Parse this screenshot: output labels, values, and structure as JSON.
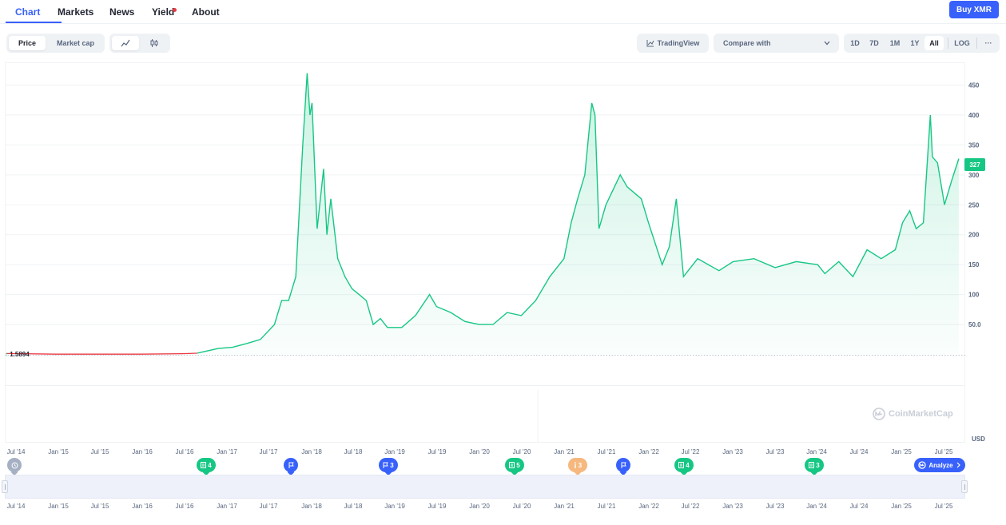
{
  "nav": {
    "tabs": [
      {
        "label": "Chart",
        "active": true
      },
      {
        "label": "Markets"
      },
      {
        "label": "News"
      },
      {
        "label": "Yield"
      },
      {
        "label": "About"
      }
    ],
    "buy_label": "Buy XMR"
  },
  "toolbar": {
    "metric": [
      "Price",
      "Market cap"
    ],
    "active_metric": "Price",
    "chart_style_icons": [
      "line-chart-icon",
      "candlestick-icon"
    ],
    "tradingview_label": "TradingView",
    "compare_placeholder": "Compare with",
    "ranges": [
      "1D",
      "7D",
      "1M",
      "1Y",
      "All"
    ],
    "active_range": "All",
    "log_label": "LOG",
    "more_label": "···"
  },
  "chart_data": {
    "type": "line",
    "currency": "USD",
    "y_unit_label": "USD",
    "ylim": [
      -50,
      480
    ],
    "y_ticks": [
      {
        "value": 50,
        "label": "50.0"
      },
      {
        "value": 100,
        "label": "100"
      },
      {
        "value": 150,
        "label": "150"
      },
      {
        "value": 200,
        "label": "200"
      },
      {
        "value": 250,
        "label": "250"
      },
      {
        "value": 300,
        "label": "300"
      },
      {
        "value": 350,
        "label": "350"
      },
      {
        "value": 400,
        "label": "400"
      },
      {
        "value": 450,
        "label": "450"
      }
    ],
    "x_ticks": [
      "Jul '14",
      "Jan '15",
      "Jul '15",
      "Jan '16",
      "Jul '16",
      "Jan '17",
      "Jul '17",
      "Jan '18",
      "Jul '18",
      "Jan '19",
      "Jul '19",
      "Jan '20",
      "Jul '20",
      "Jan '21",
      "Jul '21",
      "Jan '22",
      "Jul '22",
      "Jan '23",
      "Jul '23",
      "Jan '24",
      "Jul '24",
      "Jan '25",
      "Jul '25"
    ],
    "start_price_label": "1.5894",
    "current_price_label": "327",
    "line_color": "#16c784",
    "early_line_color": "#ea3943",
    "x": [
      "2014-06",
      "2015-01",
      "2016-01",
      "2016-07",
      "2016-09",
      "2016-12",
      "2017-02",
      "2017-04",
      "2017-06",
      "2017-08",
      "2017-09",
      "2017-10",
      "2017-11",
      "2017-12",
      "2017-12-20",
      "2018-01",
      "2018-01-10",
      "2018-02",
      "2018-03",
      "2018-03-15",
      "2018-04",
      "2018-05",
      "2018-06",
      "2018-07",
      "2018-08",
      "2018-09",
      "2018-10",
      "2018-11",
      "2018-12",
      "2019-02",
      "2019-04",
      "2019-06",
      "2019-07",
      "2019-09",
      "2019-11",
      "2020-01",
      "2020-03",
      "2020-05",
      "2020-07",
      "2020-09",
      "2020-11",
      "2021-01",
      "2021-02",
      "2021-03",
      "2021-04",
      "2021-05",
      "2021-05-15",
      "2021-06",
      "2021-07",
      "2021-09",
      "2021-10",
      "2021-12",
      "2022-01",
      "2022-03",
      "2022-04",
      "2022-05",
      "2022-06",
      "2022-08",
      "2022-11",
      "2023-01",
      "2023-04",
      "2023-07",
      "2023-10",
      "2024-01",
      "2024-02",
      "2024-04",
      "2024-06",
      "2024-08",
      "2024-10",
      "2024-12",
      "2025-01",
      "2025-02",
      "2025-03",
      "2025-04",
      "2025-05",
      "2025-05-10",
      "2025-06",
      "2025-07",
      "2025-08",
      "2025-09"
    ],
    "values": [
      1.59,
      0.5,
      0.5,
      1.2,
      2,
      10,
      12,
      18,
      25,
      50,
      90,
      90,
      130,
      350,
      470,
      400,
      420,
      210,
      310,
      200,
      260,
      160,
      130,
      110,
      100,
      90,
      50,
      60,
      45,
      45,
      65,
      100,
      80,
      70,
      55,
      50,
      50,
      70,
      65,
      90,
      130,
      160,
      220,
      260,
      300,
      420,
      400,
      210,
      250,
      300,
      280,
      260,
      220,
      150,
      180,
      260,
      130,
      160,
      140,
      155,
      160,
      145,
      155,
      150,
      135,
      155,
      130,
      175,
      160,
      175,
      220,
      240,
      210,
      220,
      400,
      330,
      320,
      250,
      290,
      327
    ]
  },
  "events": [
    {
      "icon": "history-icon",
      "count": "",
      "color": "grey"
    },
    {
      "icon": "document-icon",
      "count": "4",
      "color": "green"
    },
    {
      "icon": "flag-icon",
      "count": "",
      "color": "blue"
    },
    {
      "icon": "flag-icon",
      "count": "3",
      "color": "blue"
    },
    {
      "icon": "document-icon",
      "count": "5",
      "color": "green"
    },
    {
      "icon": "info-icon",
      "count": "3",
      "color": "orange"
    },
    {
      "icon": "flag-icon",
      "count": "",
      "color": "blue"
    },
    {
      "icon": "document-icon",
      "count": "4",
      "color": "green"
    },
    {
      "icon": "document-icon",
      "count": "3",
      "color": "green"
    }
  ],
  "analyze_label": "Analyze",
  "watermark": "CoinMarketCap"
}
